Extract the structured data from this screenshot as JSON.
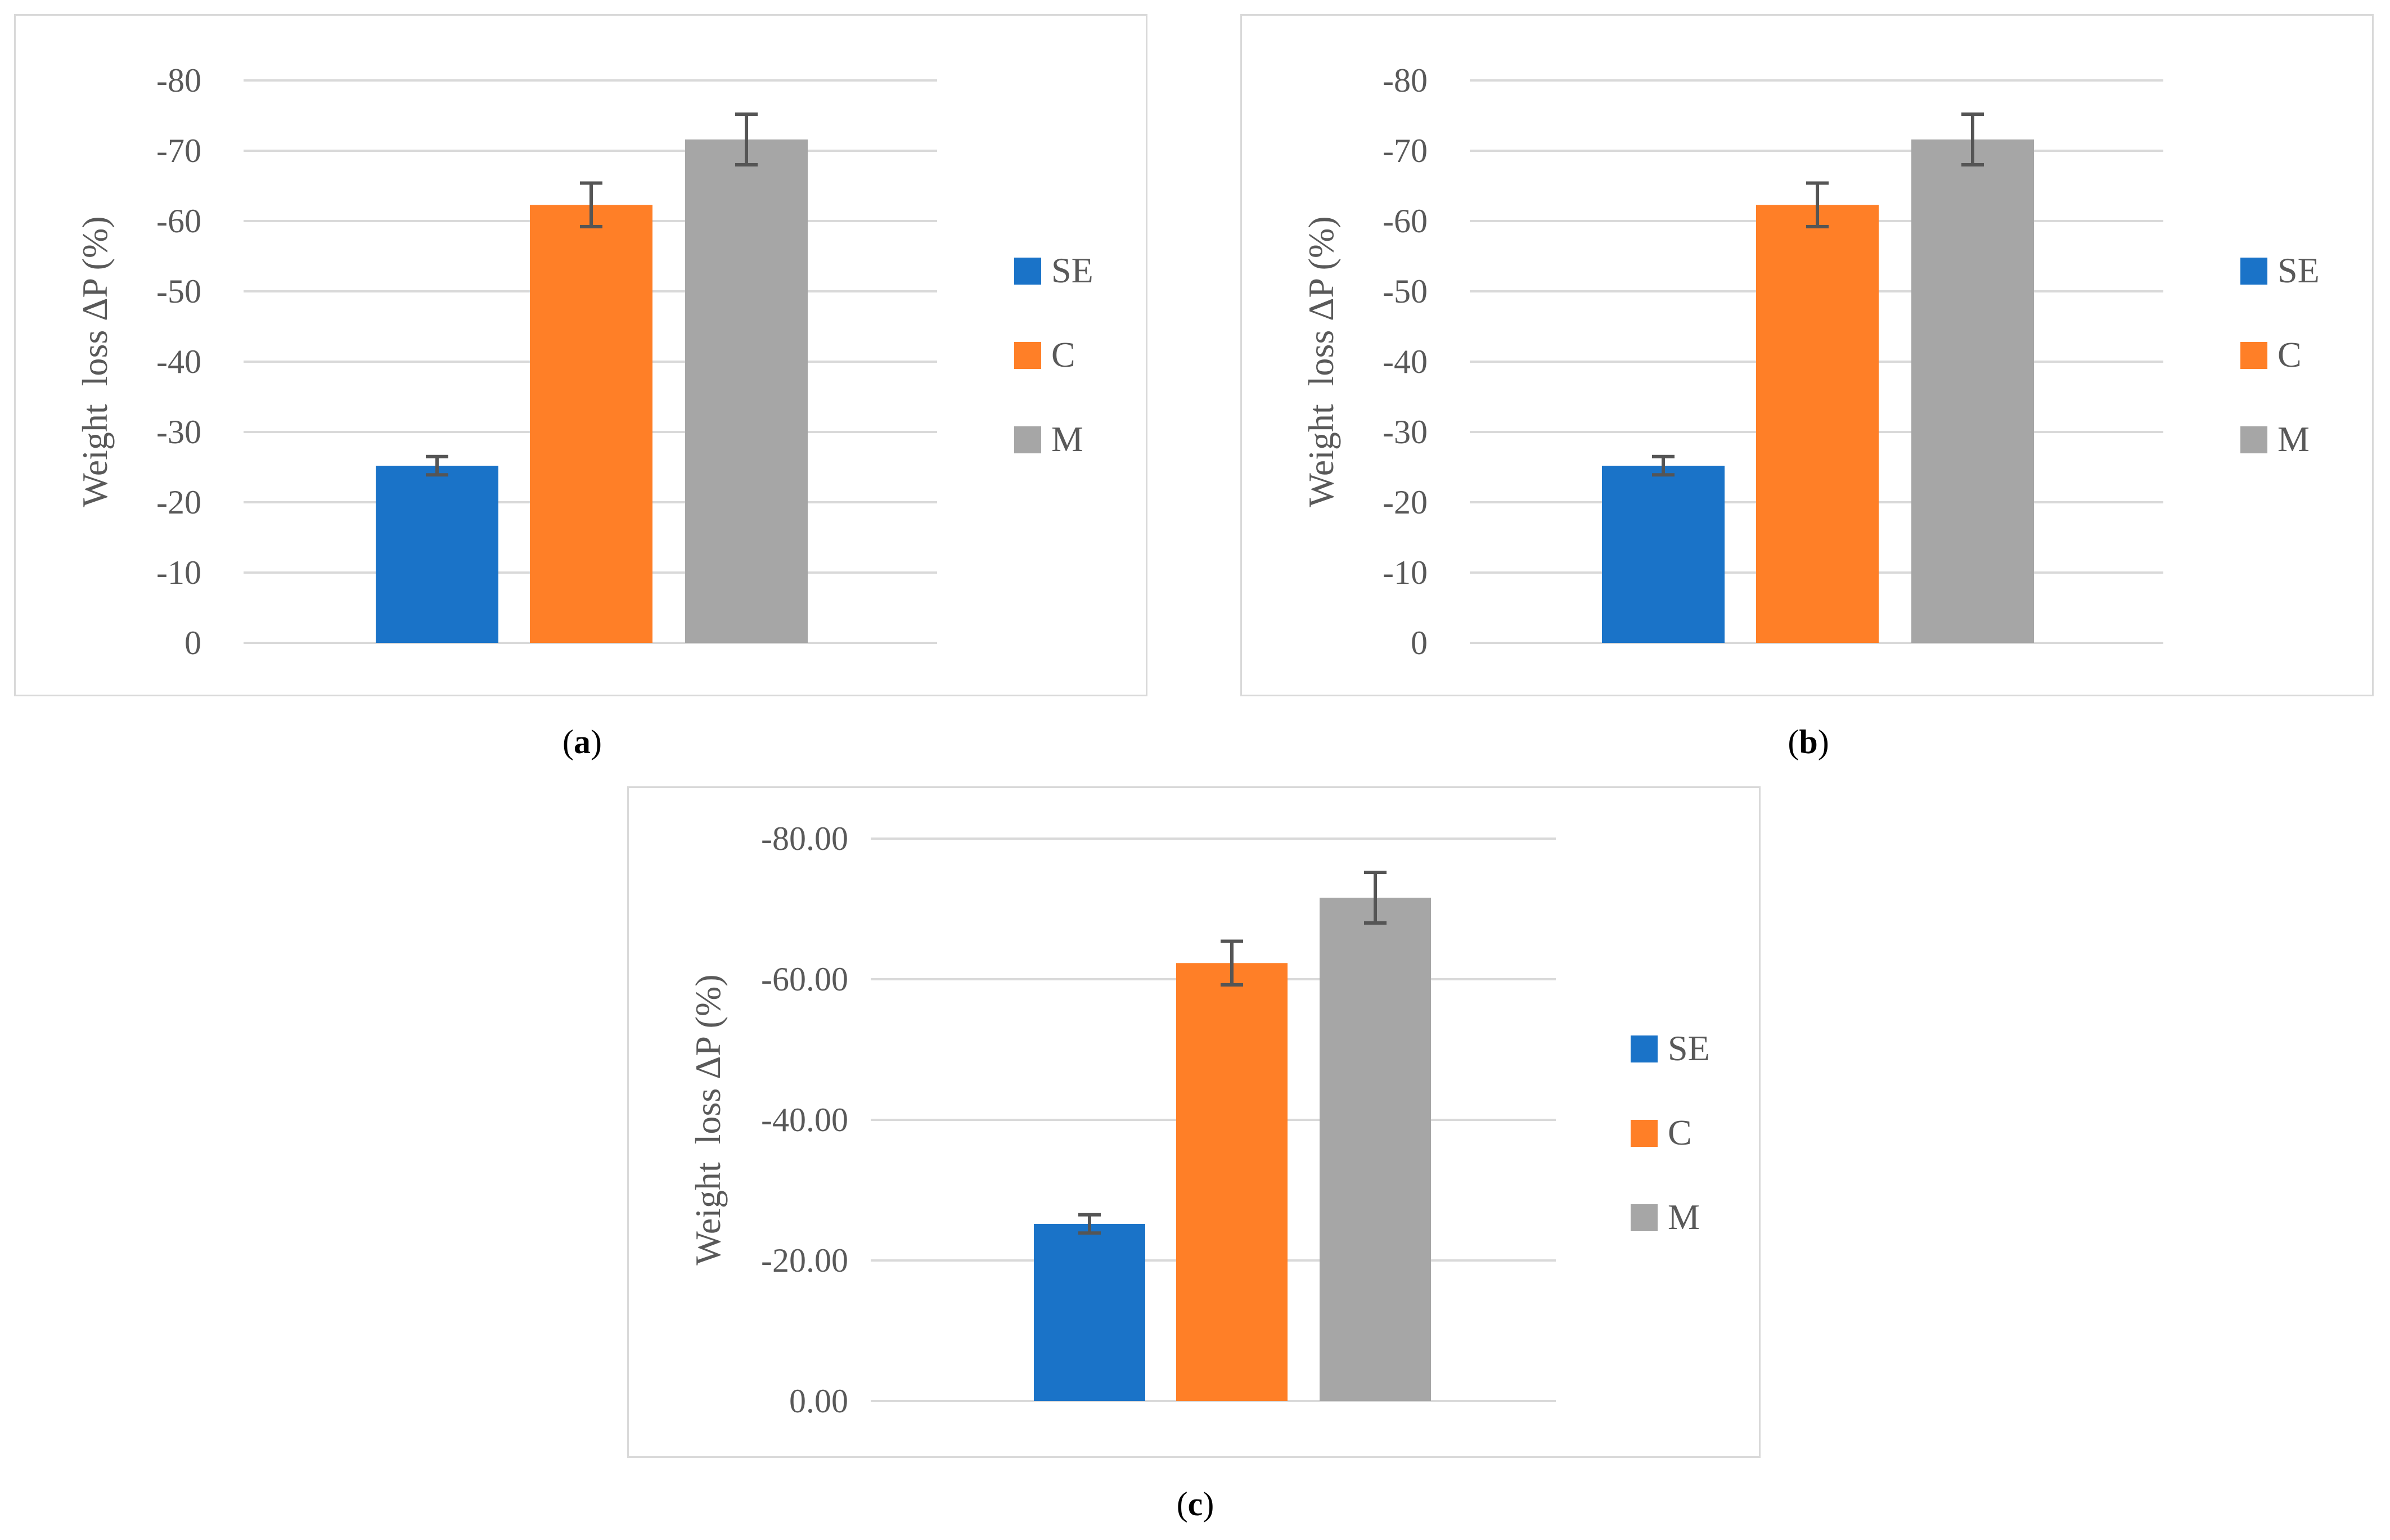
{
  "chart_data": [
    {
      "id": "a",
      "type": "bar",
      "caption_letter": "a",
      "ylabel": "Weight  loss ΔP (%)",
      "ylim": [
        0,
        -80
      ],
      "yticks": [
        0,
        -10,
        -20,
        -30,
        -40,
        -50,
        -60,
        -70,
        -80
      ],
      "ytick_labels": [
        "0",
        "-10",
        "-20",
        "-30",
        "-40",
        "-50",
        "-60",
        "-70",
        "-80"
      ],
      "grid": true,
      "legend_position": "right",
      "series": [
        {
          "name": "SE",
          "value": -25.2,
          "error": 1.3,
          "color": "#1a73c8"
        },
        {
          "name": "C",
          "value": -62.3,
          "error": 3.1,
          "color": "#ff7f27"
        },
        {
          "name": "M",
          "value": -71.6,
          "error": 3.6,
          "color": "#a6a6a6"
        }
      ]
    },
    {
      "id": "b",
      "type": "bar",
      "caption_letter": "b",
      "ylabel": "Weight  loss ΔP (%)",
      "ylim": [
        0,
        -80
      ],
      "yticks": [
        0,
        -10,
        -20,
        -30,
        -40,
        -50,
        -60,
        -70,
        -80
      ],
      "ytick_labels": [
        "0",
        "-10",
        "-20",
        "-30",
        "-40",
        "-50",
        "-60",
        "-70",
        "-80"
      ],
      "grid": true,
      "legend_position": "right",
      "series": [
        {
          "name": "SE",
          "value": -25.2,
          "error": 1.3,
          "color": "#1a73c8"
        },
        {
          "name": "C",
          "value": -62.3,
          "error": 3.1,
          "color": "#ff7f27"
        },
        {
          "name": "M",
          "value": -71.6,
          "error": 3.6,
          "color": "#a6a6a6"
        }
      ]
    },
    {
      "id": "c",
      "type": "bar",
      "caption_letter": "c",
      "ylabel": "Weight  loss ΔP (%)",
      "ylim": [
        0,
        -80
      ],
      "yticks": [
        0,
        -20,
        -40,
        -60,
        -80
      ],
      "ytick_labels": [
        "0.00",
        "-20.00",
        "-40.00",
        "-60.00",
        "-80.00"
      ],
      "grid": true,
      "legend_position": "right",
      "series": [
        {
          "name": "SE",
          "value": -25.2,
          "error": 1.3,
          "color": "#1a73c8"
        },
        {
          "name": "C",
          "value": -62.3,
          "error": 3.1,
          "color": "#ff7f27"
        },
        {
          "name": "M",
          "value": -71.6,
          "error": 3.6,
          "color": "#a6a6a6"
        }
      ]
    }
  ],
  "captions": {
    "a": {
      "open": "(",
      "letter": "a",
      "close": ")"
    },
    "b": {
      "open": "(",
      "letter": "b",
      "close": ")"
    },
    "c": {
      "open": "(",
      "letter": "c",
      "close": ")"
    }
  }
}
